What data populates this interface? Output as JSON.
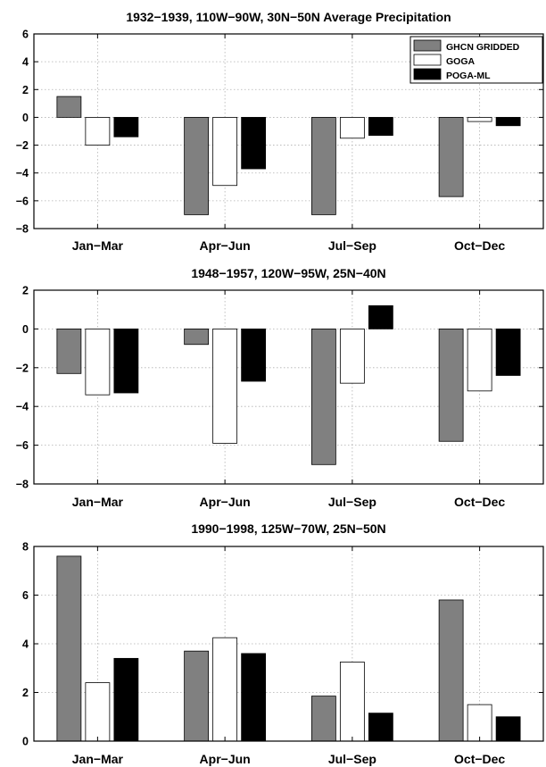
{
  "colors": {
    "GHCN GRIDDED": "#808080",
    "GOGA": "#ffffff",
    "POGA-ML": "#000000",
    "grid": "#b0b0b0"
  },
  "chart_data": [
    {
      "type": "bar",
      "title": "1932−1939, 110W−90W, 30N−50N Average Precipitation",
      "xlabel": "",
      "ylabel": "",
      "categories": [
        "Jan−Mar",
        "Apr−Jun",
        "Jul−Sep",
        "Oct−Dec"
      ],
      "ylim": [
        -8,
        6
      ],
      "yticks": [
        -8,
        -6,
        -4,
        -2,
        0,
        2,
        4,
        6
      ],
      "grid": true,
      "legend": "top-right",
      "series": [
        {
          "name": "GHCN GRIDDED",
          "values": [
            1.5,
            -7.0,
            -7.0,
            -5.7
          ]
        },
        {
          "name": "GOGA",
          "values": [
            -2.0,
            -4.9,
            -1.5,
            -0.3
          ]
        },
        {
          "name": "POGA-ML",
          "values": [
            -1.4,
            -3.7,
            -1.3,
            -0.6
          ]
        }
      ]
    },
    {
      "type": "bar",
      "title": "1948−1957, 120W−95W, 25N−40N",
      "xlabel": "",
      "ylabel": "",
      "categories": [
        "Jan−Mar",
        "Apr−Jun",
        "Jul−Sep",
        "Oct−Dec"
      ],
      "ylim": [
        -8,
        2
      ],
      "yticks": [
        -8,
        -6,
        -4,
        -2,
        0,
        2
      ],
      "grid": true,
      "series": [
        {
          "name": "GHCN GRIDDED",
          "values": [
            -2.3,
            -0.8,
            -7.0,
            -5.8
          ]
        },
        {
          "name": "GOGA",
          "values": [
            -3.4,
            -5.9,
            -2.8,
            -3.2
          ]
        },
        {
          "name": "POGA-ML",
          "values": [
            -3.3,
            -2.7,
            1.2,
            -2.4
          ]
        }
      ]
    },
    {
      "type": "bar",
      "title": "1990−1998, 125W−70W, 25N−50N",
      "xlabel": "",
      "ylabel": "",
      "categories": [
        "Jan−Mar",
        "Apr−Jun",
        "Jul−Sep",
        "Oct−Dec"
      ],
      "ylim": [
        0,
        8
      ],
      "yticks": [
        0,
        2,
        4,
        6,
        8
      ],
      "grid": true,
      "series": [
        {
          "name": "GHCN GRIDDED",
          "values": [
            7.6,
            3.7,
            1.85,
            5.8
          ]
        },
        {
          "name": "GOGA",
          "values": [
            2.4,
            4.25,
            3.25,
            1.5
          ]
        },
        {
          "name": "POGA-ML",
          "values": [
            3.4,
            3.6,
            1.15,
            1.0
          ]
        }
      ]
    }
  ]
}
